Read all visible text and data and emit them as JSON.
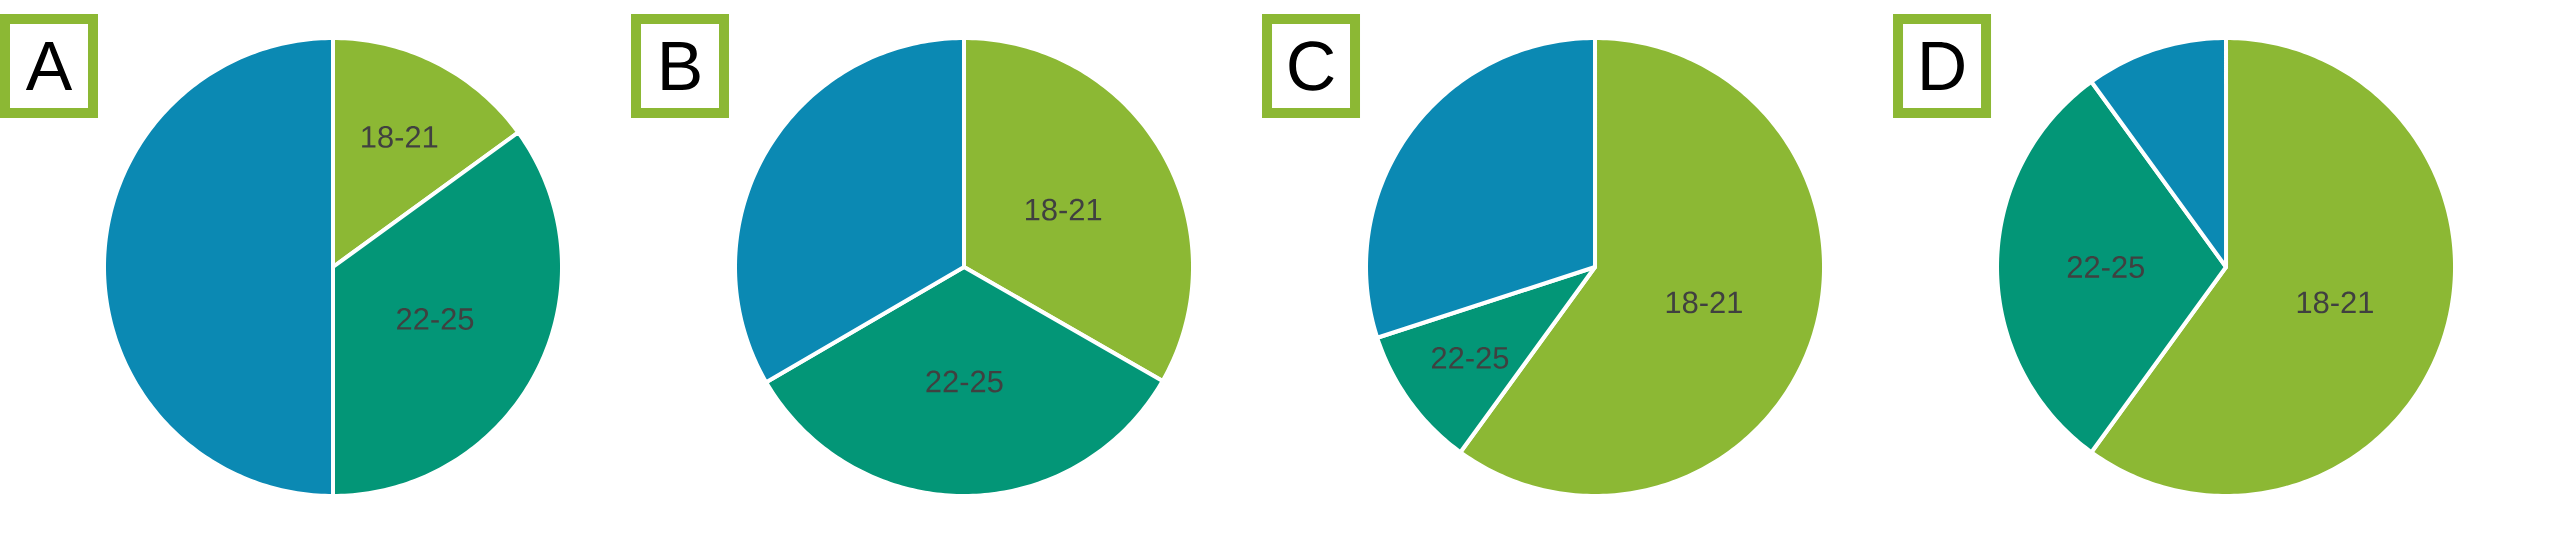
{
  "chart_data": [
    {
      "type": "pie",
      "title": "A",
      "categories": [
        "18-21",
        "22-25",
        null
      ],
      "values": [
        15,
        35,
        50
      ],
      "colors": [
        "#8cb834",
        "#039677",
        "#0b89b3"
      ]
    },
    {
      "type": "pie",
      "title": "B",
      "categories": [
        "18-21",
        "22-25",
        null
      ],
      "values": [
        33.3,
        33.3,
        33.4
      ],
      "colors": [
        "#8cb834",
        "#039677",
        "#0b89b3"
      ]
    },
    {
      "type": "pie",
      "title": "C",
      "categories": [
        "18-21",
        "22-25",
        null
      ],
      "values": [
        60,
        10,
        30
      ],
      "colors": [
        "#8cb834",
        "#039677",
        "#0b89b3"
      ]
    },
    {
      "type": "pie",
      "title": "D",
      "categories": [
        "18-21",
        "22-25",
        null
      ],
      "values": [
        60,
        30,
        10
      ],
      "colors": [
        "#8cb834",
        "#039677",
        "#0b89b3"
      ]
    }
  ]
}
